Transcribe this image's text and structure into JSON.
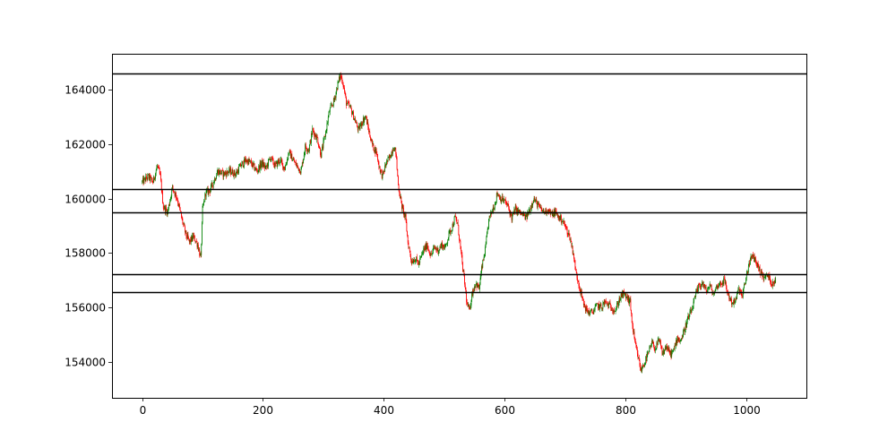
{
  "chart_data": {
    "type": "candlestick",
    "xlim": [
      -50,
      1100
    ],
    "ylim": [
      152700,
      165300
    ],
    "x_ticks": [
      0,
      200,
      400,
      600,
      800,
      1000
    ],
    "y_ticks": [
      154000,
      156000,
      158000,
      160000,
      162000,
      164000
    ],
    "x_tick_labels": [
      "0",
      "200",
      "400",
      "600",
      "800",
      "1000"
    ],
    "y_tick_labels": [
      "154000",
      "156000",
      "158000",
      "160000",
      "162000",
      "164000"
    ],
    "grid": false,
    "up_color": "#008000",
    "down_color": "#ff0000",
    "level_color": "#000000",
    "horizontal_levels": [
      164580,
      160350,
      159500,
      157230,
      156570
    ],
    "candle_count": 1050,
    "price_path": [
      [
        0,
        160600
      ],
      [
        10,
        160800
      ],
      [
        18,
        160600
      ],
      [
        25,
        161200
      ],
      [
        30,
        160800
      ],
      [
        35,
        159700
      ],
      [
        42,
        159500
      ],
      [
        50,
        160400
      ],
      [
        58,
        160000
      ],
      [
        65,
        159300
      ],
      [
        72,
        158700
      ],
      [
        78,
        158400
      ],
      [
        85,
        158600
      ],
      [
        92,
        158300
      ],
      [
        97,
        157800
      ],
      [
        100,
        159600
      ],
      [
        105,
        160200
      ],
      [
        112,
        160300
      ],
      [
        118,
        160600
      ],
      [
        125,
        161000
      ],
      [
        135,
        160900
      ],
      [
        145,
        161000
      ],
      [
        155,
        160900
      ],
      [
        163,
        161200
      ],
      [
        172,
        161400
      ],
      [
        180,
        161300
      ],
      [
        190,
        161000
      ],
      [
        198,
        161300
      ],
      [
        205,
        161100
      ],
      [
        212,
        161500
      ],
      [
        220,
        161200
      ],
      [
        228,
        161400
      ],
      [
        236,
        161100
      ],
      [
        243,
        161700
      ],
      [
        250,
        161400
      ],
      [
        256,
        161200
      ],
      [
        263,
        161000
      ],
      [
        270,
        161900
      ],
      [
        276,
        161800
      ],
      [
        282,
        162500
      ],
      [
        290,
        162200
      ],
      [
        296,
        161600
      ],
      [
        302,
        162200
      ],
      [
        310,
        163200
      ],
      [
        318,
        163600
      ],
      [
        324,
        164200
      ],
      [
        328,
        164500
      ],
      [
        332,
        164300
      ],
      [
        338,
        163500
      ],
      [
        345,
        163300
      ],
      [
        352,
        162900
      ],
      [
        358,
        162500
      ],
      [
        364,
        162800
      ],
      [
        370,
        163000
      ],
      [
        376,
        162400
      ],
      [
        382,
        161900
      ],
      [
        388,
        161700
      ],
      [
        392,
        161200
      ],
      [
        398,
        160800
      ],
      [
        404,
        161300
      ],
      [
        410,
        161500
      ],
      [
        416,
        161900
      ],
      [
        420,
        161700
      ],
      [
        424,
        160500
      ],
      [
        430,
        159700
      ],
      [
        436,
        159300
      ],
      [
        440,
        158400
      ],
      [
        446,
        157700
      ],
      [
        452,
        157800
      ],
      [
        458,
        157600
      ],
      [
        466,
        158100
      ],
      [
        472,
        158300
      ],
      [
        478,
        157900
      ],
      [
        484,
        158200
      ],
      [
        490,
        158100
      ],
      [
        496,
        158300
      ],
      [
        502,
        158200
      ],
      [
        508,
        158700
      ],
      [
        514,
        159000
      ],
      [
        518,
        159300
      ],
      [
        522,
        159100
      ],
      [
        526,
        158400
      ],
      [
        530,
        157600
      ],
      [
        534,
        156900
      ],
      [
        538,
        156100
      ],
      [
        542,
        155900
      ],
      [
        546,
        156500
      ],
      [
        552,
        156900
      ],
      [
        558,
        156700
      ],
      [
        562,
        157400
      ],
      [
        568,
        158100
      ],
      [
        574,
        159200
      ],
      [
        580,
        159600
      ],
      [
        584,
        159800
      ],
      [
        588,
        160200
      ],
      [
        594,
        160000
      ],
      [
        600,
        159900
      ],
      [
        606,
        159700
      ],
      [
        612,
        159300
      ],
      [
        618,
        159600
      ],
      [
        624,
        159500
      ],
      [
        630,
        159400
      ],
      [
        636,
        159300
      ],
      [
        642,
        159600
      ],
      [
        648,
        160000
      ],
      [
        654,
        159800
      ],
      [
        660,
        159600
      ],
      [
        666,
        159500
      ],
      [
        672,
        159600
      ],
      [
        678,
        159400
      ],
      [
        684,
        159500
      ],
      [
        690,
        159300
      ],
      [
        696,
        159200
      ],
      [
        702,
        158900
      ],
      [
        708,
        158600
      ],
      [
        714,
        158000
      ],
      [
        718,
        157300
      ],
      [
        722,
        157000
      ],
      [
        726,
        156600
      ],
      [
        730,
        156200
      ],
      [
        736,
        155900
      ],
      [
        742,
        155800
      ],
      [
        748,
        155900
      ],
      [
        754,
        156100
      ],
      [
        760,
        156000
      ],
      [
        766,
        156200
      ],
      [
        772,
        156100
      ],
      [
        778,
        156000
      ],
      [
        784,
        155900
      ],
      [
        790,
        156300
      ],
      [
        796,
        156500
      ],
      [
        802,
        156400
      ],
      [
        808,
        156200
      ],
      [
        812,
        155300
      ],
      [
        816,
        154700
      ],
      [
        820,
        154300
      ],
      [
        826,
        153700
      ],
      [
        832,
        154000
      ],
      [
        838,
        154300
      ],
      [
        844,
        154700
      ],
      [
        850,
        154500
      ],
      [
        856,
        154800
      ],
      [
        862,
        154300
      ],
      [
        868,
        154600
      ],
      [
        874,
        154300
      ],
      [
        880,
        154400
      ],
      [
        886,
        154900
      ],
      [
        892,
        154800
      ],
      [
        898,
        155200
      ],
      [
        904,
        155600
      ],
      [
        910,
        155900
      ],
      [
        916,
        156400
      ],
      [
        922,
        156800
      ],
      [
        928,
        156900
      ],
      [
        934,
        156600
      ],
      [
        940,
        156800
      ],
      [
        946,
        156500
      ],
      [
        952,
        156800
      ],
      [
        958,
        156900
      ],
      [
        964,
        157000
      ],
      [
        970,
        156500
      ],
      [
        976,
        156200
      ],
      [
        982,
        156200
      ],
      [
        988,
        156700
      ],
      [
        994,
        156400
      ],
      [
        1000,
        157100
      ],
      [
        1006,
        157700
      ],
      [
        1012,
        157900
      ],
      [
        1018,
        157600
      ],
      [
        1024,
        157300
      ],
      [
        1030,
        157100
      ],
      [
        1036,
        157200
      ],
      [
        1042,
        156900
      ],
      [
        1048,
        157000
      ]
    ]
  }
}
